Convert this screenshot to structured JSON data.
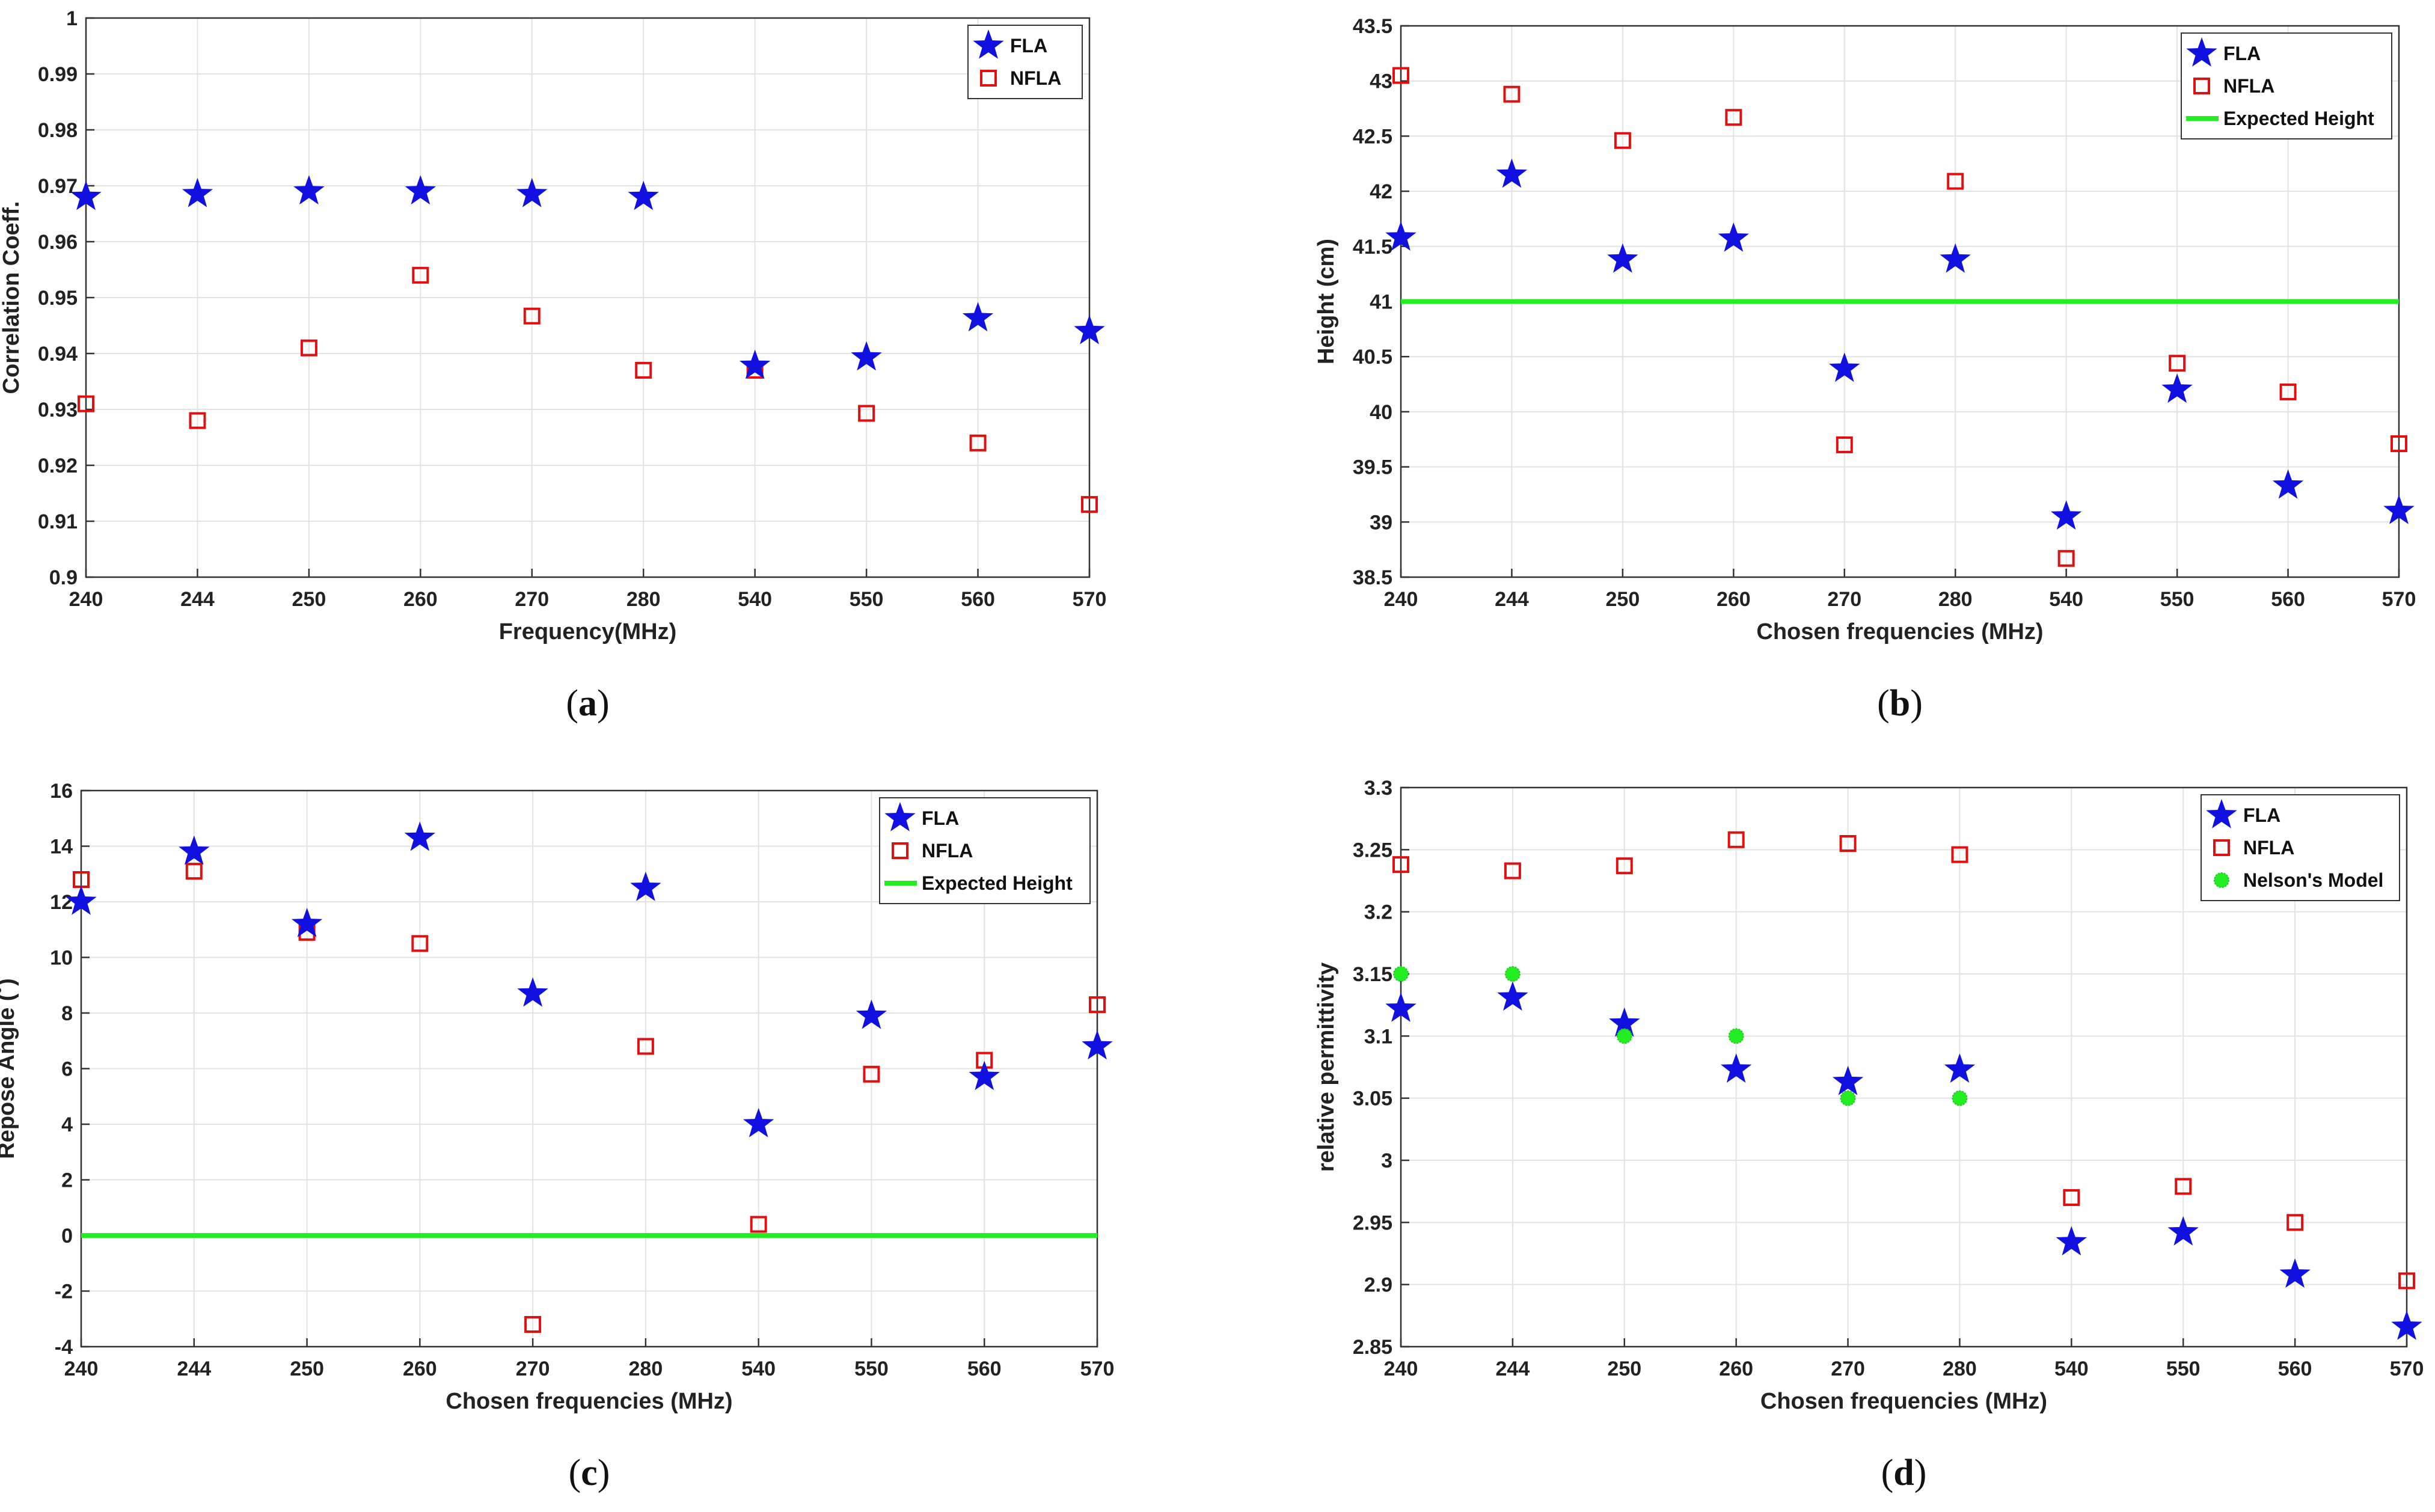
{
  "colors": {
    "fla": "#1010e0",
    "nfla": "#e01010",
    "expected": "#22ee22",
    "nelson": "#22ee22",
    "grid": "#e3e3e3",
    "axis": "#333333"
  },
  "chart_data": [
    {
      "id": "a",
      "caption": "a",
      "type": "scatter",
      "categories": [
        "240",
        "244",
        "250",
        "260",
        "270",
        "280",
        "540",
        "550",
        "560",
        "570"
      ],
      "xlabel": "Frequency(MHz)",
      "ylabel": "Correlation Coeff.",
      "ylim": [
        0.9,
        1.0
      ],
      "yticks": [
        "0.9",
        "0.91",
        "0.92",
        "0.93",
        "0.94",
        "0.95",
        "0.96",
        "0.97",
        "0.98",
        "0.99",
        "1"
      ],
      "grid": true,
      "legend": "top-right",
      "series": [
        {
          "name": "FLA",
          "marker": "star",
          "values": [
            0.968,
            0.9685,
            0.969,
            0.969,
            0.9685,
            0.968,
            0.9378,
            0.9393,
            0.9463,
            0.944
          ]
        },
        {
          "name": "NFLA",
          "marker": "square",
          "values": [
            0.931,
            0.928,
            0.941,
            0.954,
            0.9467,
            0.937,
            0.937,
            0.9293,
            0.924,
            0.913
          ]
        }
      ],
      "hlines": []
    },
    {
      "id": "b",
      "caption": "b",
      "type": "scatter",
      "categories": [
        "240",
        "244",
        "250",
        "260",
        "270",
        "280",
        "540",
        "550",
        "560",
        "570"
      ],
      "xlabel": "Chosen frequencies (MHz)",
      "ylabel": "Height (cm)",
      "ylim": [
        38.5,
        43.5
      ],
      "yticks": [
        "38.5",
        "39",
        "39.5",
        "40",
        "40.5",
        "41",
        "41.5",
        "42",
        "42.5",
        "43",
        "43.5"
      ],
      "grid": true,
      "legend": "top-right",
      "series": [
        {
          "name": "FLA",
          "marker": "star",
          "values": [
            41.58,
            42.15,
            41.38,
            41.57,
            40.39,
            41.38,
            39.05,
            40.2,
            39.33,
            39.1
          ]
        },
        {
          "name": "NFLA",
          "marker": "square",
          "values": [
            43.05,
            42.88,
            42.46,
            42.67,
            39.7,
            42.09,
            38.67,
            40.44,
            40.18,
            39.71
          ]
        }
      ],
      "hlines": [
        {
          "name": "Expected Height",
          "value": 41.0
        }
      ]
    },
    {
      "id": "c",
      "caption": "c",
      "type": "scatter",
      "categories": [
        "240",
        "244",
        "250",
        "260",
        "270",
        "280",
        "540",
        "550",
        "560",
        "570"
      ],
      "xlabel": "Chosen frequencies (MHz)",
      "ylabel": "Repose Angle (˚)",
      "ylim": [
        -4,
        16
      ],
      "yticks": [
        "-4",
        "-2",
        "0",
        "2",
        "4",
        "6",
        "8",
        "10",
        "12",
        "14",
        "16"
      ],
      "grid": true,
      "legend": "top-right",
      "series": [
        {
          "name": "FLA",
          "marker": "star",
          "values": [
            12.0,
            13.8,
            11.2,
            14.3,
            8.7,
            12.5,
            4.0,
            7.9,
            5.7,
            6.8
          ]
        },
        {
          "name": "NFLA",
          "marker": "square",
          "values": [
            12.8,
            13.1,
            10.9,
            10.5,
            -3.2,
            6.8,
            0.4,
            5.8,
            6.3,
            8.3
          ]
        }
      ],
      "hlines": [
        {
          "name": "Expected Height",
          "value": 0.0
        }
      ]
    },
    {
      "id": "d",
      "caption": "d",
      "type": "scatter",
      "categories": [
        "240",
        "244",
        "250",
        "260",
        "270",
        "280",
        "540",
        "550",
        "560",
        "570"
      ],
      "xlabel": "Chosen frequencies (MHz)",
      "ylabel": "relative permittivity",
      "ylim": [
        2.85,
        3.3
      ],
      "yticks": [
        "2.85",
        "2.9",
        "2.95",
        "3",
        "3.05",
        "3.1",
        "3.15",
        "3.2",
        "3.25",
        "3.3"
      ],
      "grid": true,
      "legend": "top-right",
      "series": [
        {
          "name": "FLA",
          "marker": "star",
          "values": [
            3.122,
            3.131,
            3.11,
            3.073,
            3.063,
            3.073,
            2.934,
            2.942,
            2.908,
            2.866
          ]
        },
        {
          "name": "NFLA",
          "marker": "square",
          "values": [
            3.238,
            3.233,
            3.237,
            3.258,
            3.255,
            3.246,
            2.97,
            2.979,
            2.95,
            2.903
          ]
        },
        {
          "name": "Nelson's Model",
          "marker": "dot",
          "values": [
            3.15,
            3.15,
            3.1,
            3.1,
            3.05,
            3.05,
            null,
            null,
            null,
            null
          ]
        }
      ],
      "hlines": []
    }
  ]
}
